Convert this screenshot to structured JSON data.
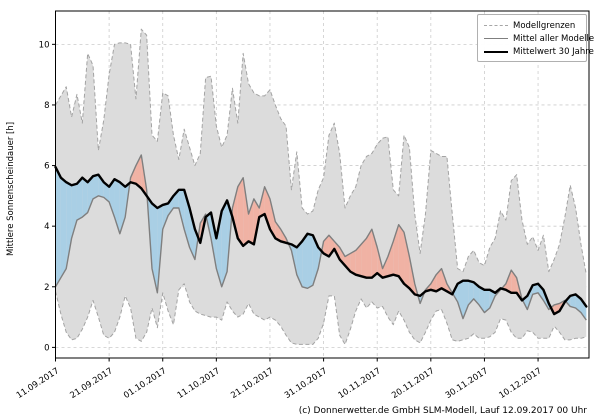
{
  "figure": {
    "caption": "(c) Donnerwetter.de GmbH SLM-Modell, Lauf 12.09.2017 00 Uhr"
  },
  "legend": {
    "position": "upper right",
    "items": [
      {
        "label": "Modellgrenzen",
        "style": "dashed",
        "color": "#a6a6a6"
      },
      {
        "label": "Mittel aller Modelle",
        "style": "solid",
        "color": "#7f7f7f"
      },
      {
        "label": "Mittelwert 30 Jahre",
        "style": "solid-thick",
        "color": "#000000"
      }
    ]
  },
  "chart_data": {
    "type": "line",
    "title": "",
    "xlabel": "",
    "ylabel": "Mittlere Sonnenscheindauer [h]",
    "grid": true,
    "xlim": [
      0,
      99.5
    ],
    "ylim": [
      -0.35,
      11.1
    ],
    "yticks": [
      0,
      2,
      4,
      6,
      8,
      10
    ],
    "x_tick_days": [
      0,
      10,
      20,
      30,
      40,
      50,
      60,
      70,
      80,
      90
    ],
    "x_ticklabels": [
      "11.09.2017",
      "21.09.2017",
      "01.10.2017",
      "11.10.2017",
      "21.10.2017",
      "31.10.2017",
      "10.11.2017",
      "20.11.2017",
      "30.11.2017",
      "10.12.2017"
    ],
    "x_start_date": "11.09.2017",
    "x_step_days": 1,
    "colors": {
      "band": "#dcdcdc",
      "band_edge": "#a3a3a3",
      "above": "#f0b2a4",
      "below": "#a9cfe5",
      "model_mean": "#7f7f7f",
      "mean_30y": "#000000",
      "grid": "#cccccc"
    },
    "series": [
      {
        "name": "Modellgrenzen (obere Grenze)",
        "role": "upper_bound",
        "values": [
          8.0,
          8.3,
          8.6,
          7.6,
          8.35,
          7.4,
          9.7,
          9.3,
          6.5,
          7.5,
          9.0,
          10.0,
          10.05,
          10.05,
          10.0,
          8.2,
          10.5,
          10.3,
          7.0,
          6.8,
          8.4,
          8.3,
          7.0,
          6.2,
          7.2,
          6.6,
          6.0,
          6.4,
          8.9,
          8.95,
          7.3,
          6.6,
          7.0,
          8.55,
          7.4,
          9.7,
          8.7,
          8.4,
          8.3,
          8.3,
          8.5,
          8.0,
          7.55,
          7.3,
          5.2,
          6.45,
          4.6,
          4.4,
          4.5,
          5.2,
          5.6,
          7.0,
          7.4,
          6.4,
          4.6,
          5.0,
          5.3,
          6.0,
          6.3,
          6.4,
          6.7,
          6.9,
          6.95,
          5.2,
          5.0,
          7.0,
          6.6,
          4.4,
          3.1,
          4.4,
          6.5,
          6.4,
          6.3,
          6.3,
          4.4,
          2.6,
          2.5,
          3.0,
          3.2,
          2.8,
          2.7,
          3.3,
          3.6,
          4.5,
          4.2,
          5.5,
          5.7,
          4.2,
          3.4,
          3.65,
          3.2,
          3.7,
          2.5,
          2.9,
          3.4,
          4.3,
          5.35,
          4.6,
          3.4,
          2.4
        ]
      },
      {
        "name": "Modellgrenzen (untere Grenze)",
        "role": "lower_bound",
        "values": [
          1.85,
          1.1,
          0.5,
          0.25,
          0.3,
          0.6,
          1.0,
          1.55,
          1.0,
          0.4,
          0.3,
          0.5,
          1.0,
          1.7,
          1.3,
          0.3,
          0.2,
          0.5,
          1.3,
          0.65,
          1.8,
          1.2,
          0.75,
          1.9,
          2.1,
          1.5,
          1.2,
          1.1,
          1.05,
          1.0,
          1.0,
          0.9,
          1.5,
          1.2,
          1.0,
          1.1,
          1.45,
          1.1,
          1.0,
          0.9,
          1.0,
          0.9,
          0.7,
          0.4,
          0.15,
          0.1,
          0.1,
          0.1,
          0.1,
          0.3,
          0.8,
          1.7,
          1.7,
          0.4,
          0.1,
          0.6,
          1.2,
          1.6,
          1.3,
          1.5,
          1.3,
          1.35,
          1.0,
          0.75,
          1.2,
          0.9,
          0.5,
          0.25,
          0.15,
          0.5,
          0.9,
          1.2,
          1.25,
          0.8,
          0.25,
          0.2,
          0.25,
          0.3,
          0.45,
          0.3,
          0.3,
          0.35,
          0.5,
          0.95,
          0.9,
          0.5,
          0.3,
          0.3,
          0.55,
          0.5,
          0.3,
          0.3,
          0.3,
          0.7,
          0.5,
          0.25,
          0.25,
          0.3,
          0.3,
          0.35
        ]
      },
      {
        "name": "Mittel aller Modelle",
        "role": "model_mean",
        "values": [
          2.0,
          2.3,
          2.6,
          3.6,
          4.2,
          4.3,
          4.45,
          4.9,
          5.0,
          4.95,
          4.8,
          4.3,
          3.75,
          4.3,
          5.6,
          6.0,
          6.35,
          5.2,
          2.6,
          1.8,
          3.9,
          4.35,
          4.6,
          4.6,
          3.9,
          3.3,
          2.9,
          4.1,
          4.4,
          3.6,
          2.6,
          2.0,
          2.5,
          4.6,
          5.3,
          5.6,
          4.4,
          4.9,
          4.6,
          5.3,
          4.9,
          4.15,
          3.9,
          3.6,
          3.2,
          2.4,
          2.0,
          1.95,
          2.05,
          2.6,
          3.5,
          3.7,
          3.5,
          3.3,
          3.0,
          3.1,
          3.2,
          3.4,
          3.6,
          3.9,
          3.3,
          2.6,
          3.0,
          3.5,
          4.05,
          3.8,
          3.0,
          2.1,
          1.45,
          1.9,
          2.1,
          2.4,
          2.6,
          2.1,
          1.8,
          1.5,
          0.95,
          1.4,
          1.6,
          1.4,
          1.15,
          1.3,
          1.7,
          1.9,
          2.1,
          2.55,
          2.3,
          1.6,
          1.25,
          1.75,
          1.8,
          1.55,
          1.25,
          1.4,
          1.45,
          1.55,
          1.35,
          1.3,
          1.15,
          0.9
        ]
      },
      {
        "name": "Mittelwert 30 Jahre",
        "role": "mean_30y",
        "values": [
          5.95,
          5.6,
          5.45,
          5.35,
          5.4,
          5.6,
          5.45,
          5.65,
          5.7,
          5.45,
          5.3,
          5.55,
          5.45,
          5.3,
          5.45,
          5.4,
          5.25,
          5.0,
          4.75,
          4.6,
          4.7,
          4.75,
          5.0,
          5.2,
          5.2,
          4.6,
          3.9,
          3.45,
          4.3,
          4.45,
          3.6,
          4.5,
          4.85,
          4.3,
          3.6,
          3.35,
          3.5,
          3.4,
          4.3,
          4.4,
          3.9,
          3.6,
          3.5,
          3.45,
          3.4,
          3.3,
          3.5,
          3.75,
          3.7,
          3.3,
          3.1,
          3.0,
          3.25,
          2.9,
          2.7,
          2.5,
          2.4,
          2.35,
          2.3,
          2.3,
          2.45,
          2.3,
          2.35,
          2.4,
          2.35,
          2.1,
          1.95,
          1.75,
          1.7,
          1.85,
          1.9,
          1.85,
          1.95,
          1.85,
          1.75,
          2.1,
          2.2,
          2.2,
          2.15,
          2.0,
          1.9,
          1.9,
          1.8,
          1.95,
          1.9,
          1.8,
          1.8,
          1.55,
          1.7,
          2.05,
          2.1,
          1.9,
          1.45,
          1.1,
          1.2,
          1.5,
          1.7,
          1.75,
          1.6,
          1.35
        ]
      }
    ]
  }
}
